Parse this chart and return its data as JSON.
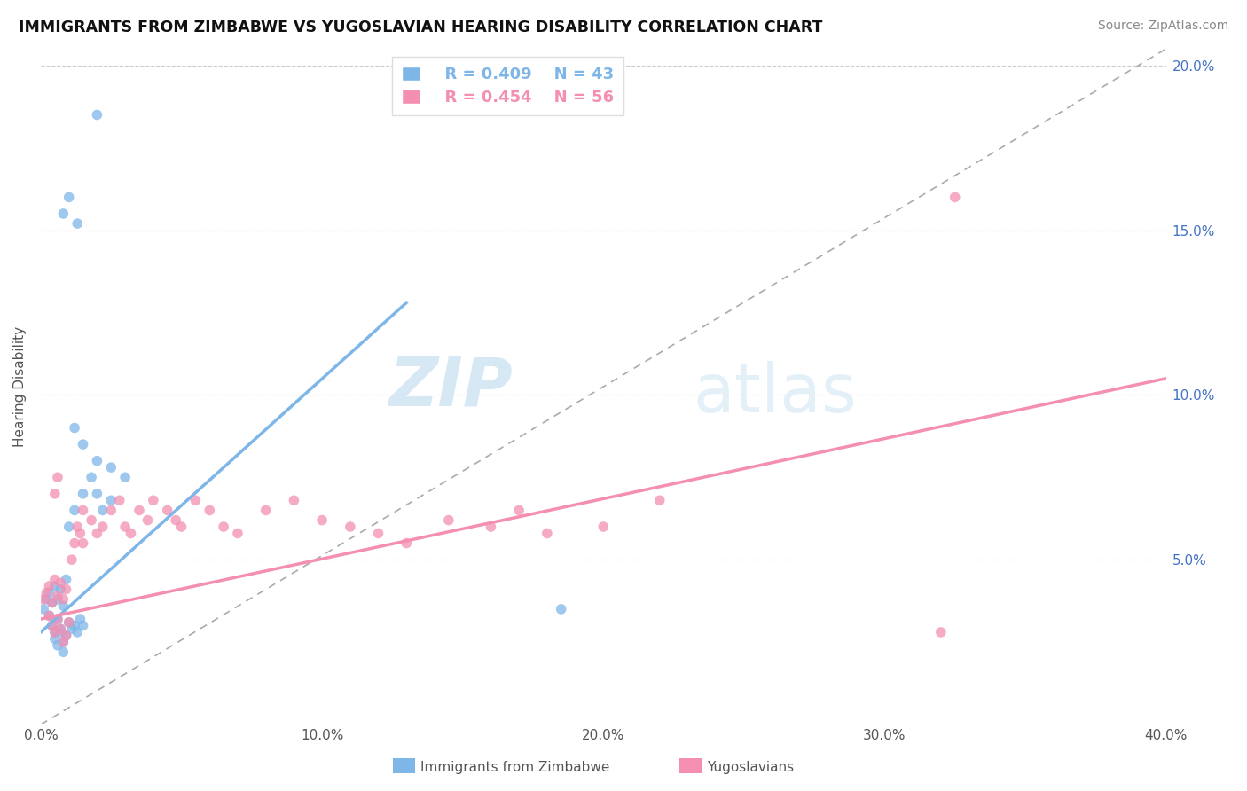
{
  "title": "IMMIGRANTS FROM ZIMBABWE VS YUGOSLAVIAN HEARING DISABILITY CORRELATION CHART",
  "source": "Source: ZipAtlas.com",
  "ylabel": "Hearing Disability",
  "legend_label_1": "Immigrants from Zimbabwe",
  "legend_label_2": "Yugoslavians",
  "R1": 0.409,
  "N1": 43,
  "R2": 0.454,
  "N2": 56,
  "color1": "#7EB6E8",
  "color2": "#F48FB1",
  "background_color": "#FFFFFF",
  "xmin": 0.0,
  "xmax": 0.4,
  "ymin": 0.0,
  "ymax": 0.205,
  "watermark_zip": "ZIP",
  "watermark_atlas": "atlas",
  "blue_scatter_x": [
    0.001,
    0.002,
    0.003,
    0.004,
    0.005,
    0.006,
    0.007,
    0.008,
    0.009,
    0.003,
    0.004,
    0.005,
    0.006,
    0.007,
    0.008,
    0.009,
    0.01,
    0.011,
    0.012,
    0.013,
    0.014,
    0.015,
    0.005,
    0.006,
    0.007,
    0.008,
    0.01,
    0.012,
    0.015,
    0.018,
    0.02,
    0.022,
    0.025,
    0.012,
    0.015,
    0.02,
    0.025,
    0.03,
    0.008,
    0.01,
    0.013,
    0.02,
    0.185
  ],
  "blue_scatter_y": [
    0.035,
    0.038,
    0.04,
    0.037,
    0.042,
    0.038,
    0.041,
    0.036,
    0.044,
    0.033,
    0.03,
    0.028,
    0.032,
    0.029,
    0.025,
    0.027,
    0.031,
    0.029,
    0.03,
    0.028,
    0.032,
    0.03,
    0.026,
    0.024,
    0.028,
    0.022,
    0.06,
    0.065,
    0.07,
    0.075,
    0.07,
    0.065,
    0.068,
    0.09,
    0.085,
    0.08,
    0.078,
    0.075,
    0.155,
    0.16,
    0.152,
    0.185,
    0.035
  ],
  "pink_scatter_x": [
    0.001,
    0.002,
    0.003,
    0.004,
    0.005,
    0.006,
    0.007,
    0.008,
    0.009,
    0.003,
    0.004,
    0.005,
    0.006,
    0.007,
    0.008,
    0.009,
    0.01,
    0.011,
    0.012,
    0.013,
    0.014,
    0.015,
    0.005,
    0.006,
    0.015,
    0.018,
    0.02,
    0.022,
    0.025,
    0.028,
    0.03,
    0.032,
    0.035,
    0.038,
    0.04,
    0.045,
    0.048,
    0.05,
    0.055,
    0.06,
    0.065,
    0.07,
    0.08,
    0.09,
    0.1,
    0.11,
    0.12,
    0.13,
    0.145,
    0.16,
    0.17,
    0.18,
    0.2,
    0.22,
    0.32,
    0.325
  ],
  "pink_scatter_y": [
    0.038,
    0.04,
    0.042,
    0.037,
    0.044,
    0.039,
    0.043,
    0.038,
    0.041,
    0.033,
    0.03,
    0.028,
    0.032,
    0.029,
    0.025,
    0.027,
    0.031,
    0.05,
    0.055,
    0.06,
    0.058,
    0.065,
    0.07,
    0.075,
    0.055,
    0.062,
    0.058,
    0.06,
    0.065,
    0.068,
    0.06,
    0.058,
    0.065,
    0.062,
    0.068,
    0.065,
    0.062,
    0.06,
    0.068,
    0.065,
    0.06,
    0.058,
    0.065,
    0.068,
    0.062,
    0.06,
    0.058,
    0.055,
    0.062,
    0.06,
    0.065,
    0.058,
    0.06,
    0.068,
    0.028,
    0.16
  ]
}
